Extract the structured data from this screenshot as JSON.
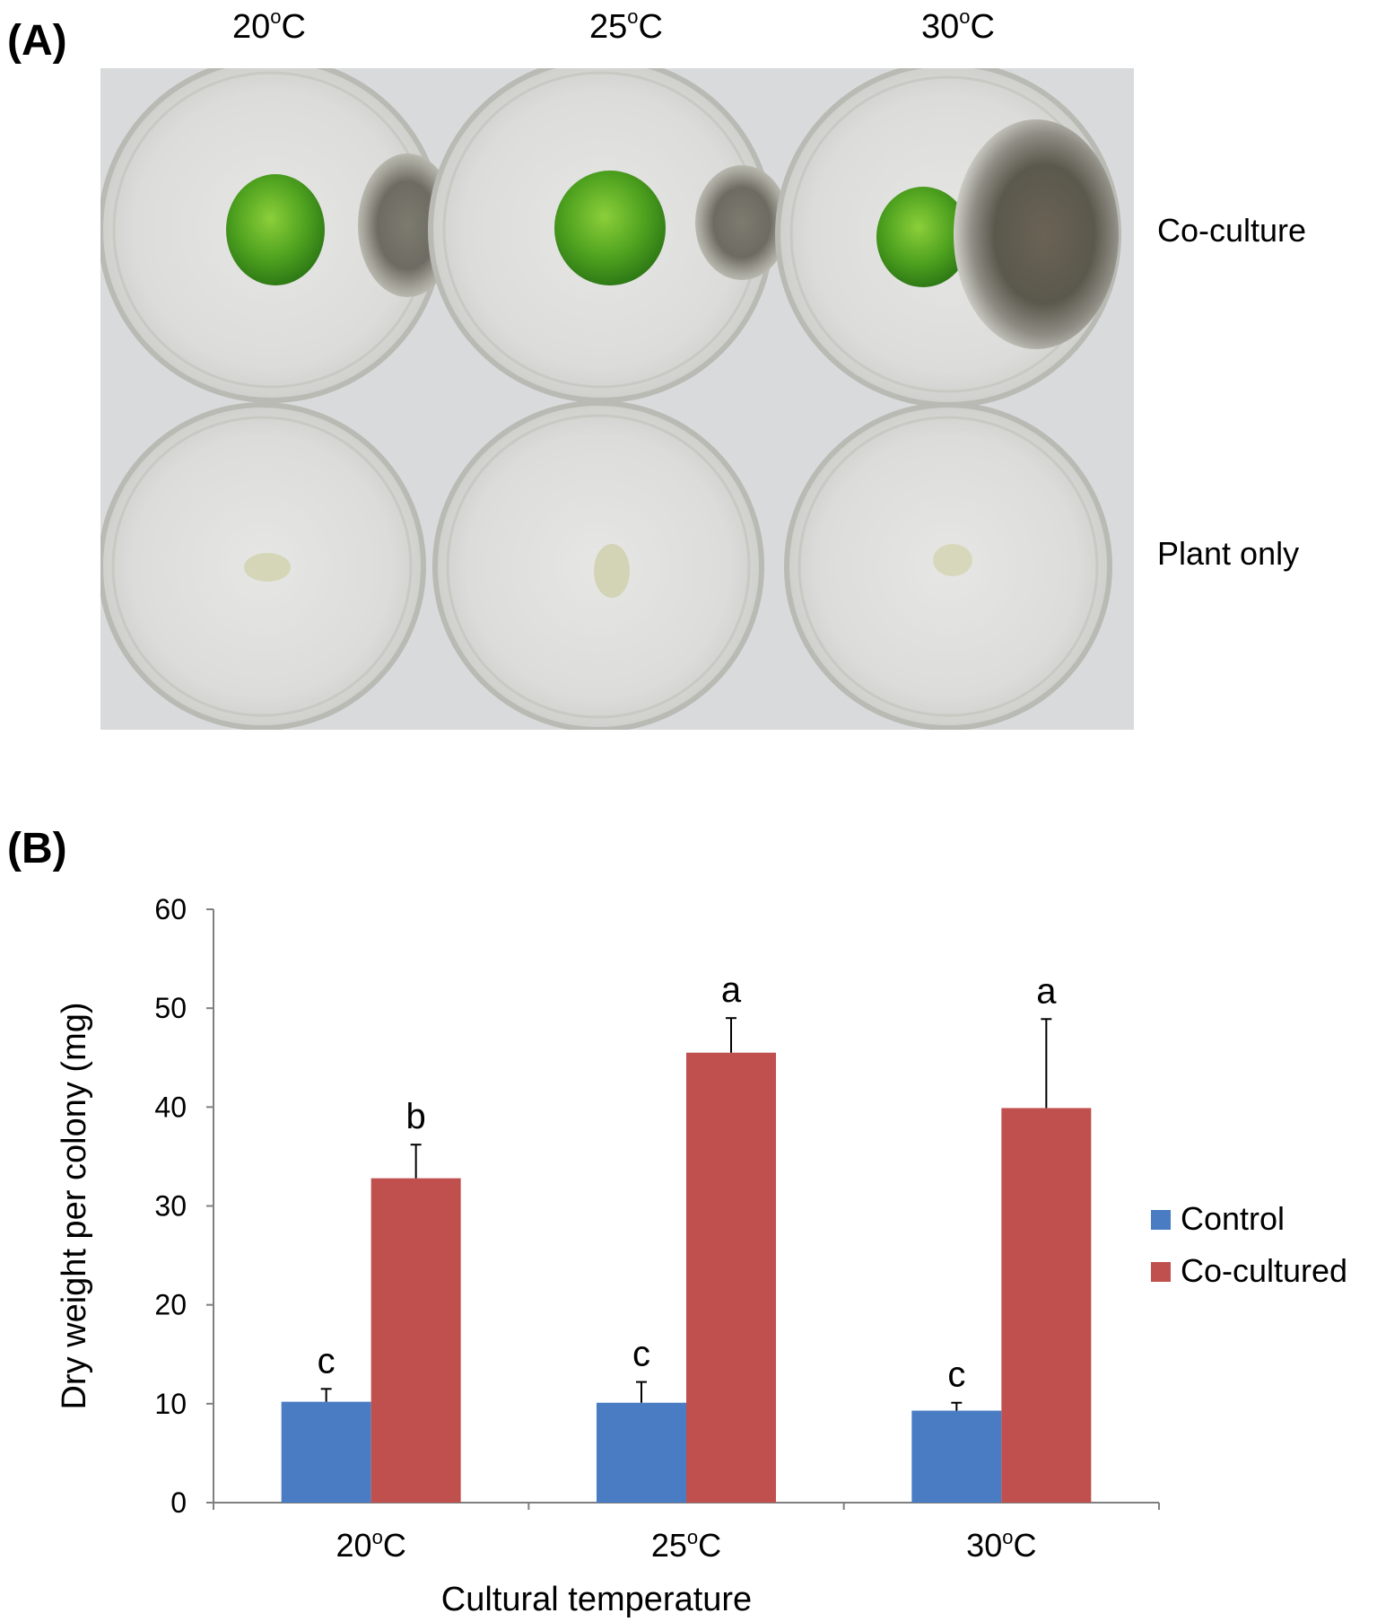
{
  "panel_a": {
    "label": "(A)",
    "columns": [
      {
        "value": "20",
        "sup": "o",
        "unit": "C"
      },
      {
        "value": "25",
        "sup": "o",
        "unit": "C"
      },
      {
        "value": "30",
        "sup": "o",
        "unit": "C"
      }
    ],
    "rows": [
      "Co-culture",
      "Plant only"
    ]
  },
  "panel_b": {
    "label": "(B)"
  },
  "chart_data": {
    "type": "bar",
    "categories": [
      "20",
      "25",
      "30"
    ],
    "category_unit_sup": "o",
    "category_unit": "C",
    "xlabel": "Cultural temperature",
    "ylabel": "Dry weight per colony (mg)",
    "ylim": [
      0,
      60
    ],
    "yticks": [
      0,
      10,
      20,
      30,
      40,
      50,
      60
    ],
    "grid": false,
    "legend_position": "right",
    "series": [
      {
        "name": "Control",
        "color": "#4a7cc4",
        "values": [
          10.2,
          10.1,
          9.3
        ],
        "errors": [
          1.3,
          2.1,
          0.8
        ],
        "letters": [
          "c",
          "c",
          "c"
        ]
      },
      {
        "name": "Co-cultured",
        "color": "#c0504d",
        "values": [
          32.8,
          45.5,
          39.9
        ],
        "errors": [
          3.4,
          3.5,
          9.0
        ],
        "letters": [
          "b",
          "a",
          "a"
        ]
      }
    ]
  }
}
